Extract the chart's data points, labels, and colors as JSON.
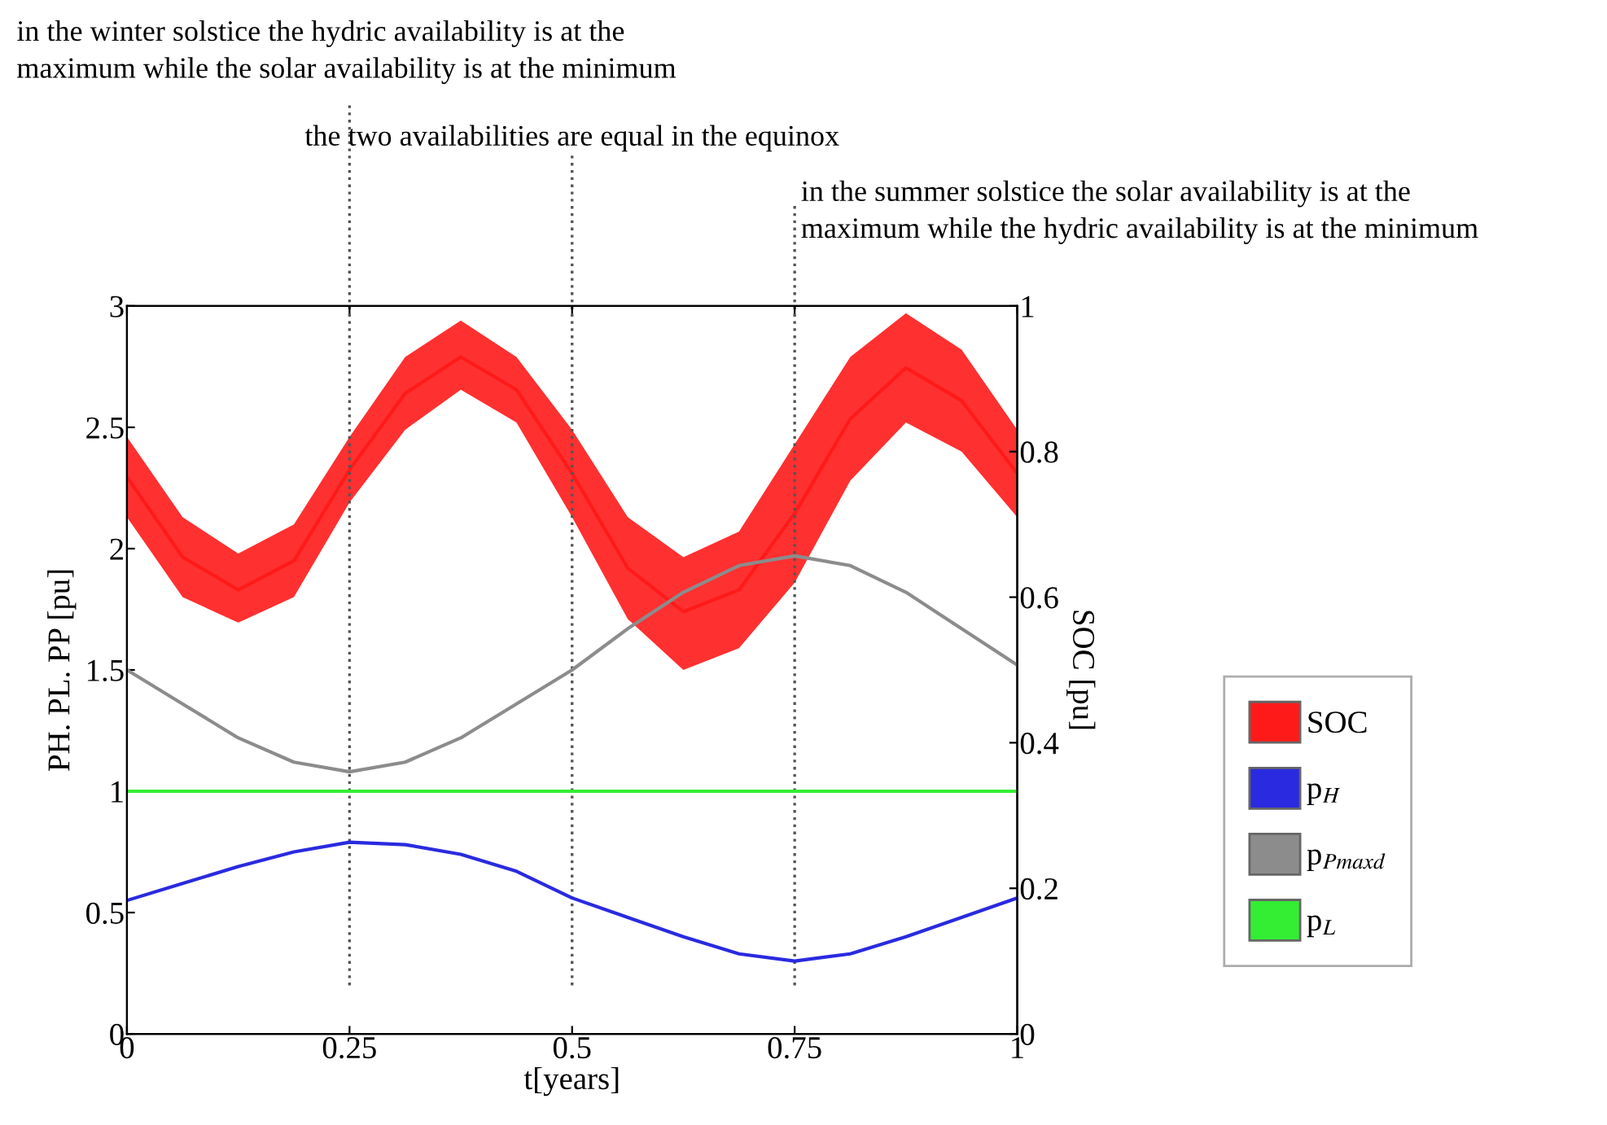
{
  "chart_data": {
    "type": "line",
    "xlabel": "t[years]",
    "ylabel": "PH. PL. PP [pu]",
    "y2label": "SOC [pu]",
    "xlim": [
      0,
      1
    ],
    "xticks": [
      0,
      0.25,
      0.5,
      0.75,
      1
    ],
    "ylim": [
      0,
      3
    ],
    "yticks": [
      0,
      0.5,
      1,
      1.5,
      2,
      2.5,
      3
    ],
    "y2lim": [
      0,
      1
    ],
    "y2ticks": [
      0,
      0.2,
      0.4,
      0.6,
      0.8,
      1
    ],
    "grid": false,
    "legend": "right",
    "marker": "none",
    "line_style": "solid",
    "x": [
      0,
      0.0625,
      0.125,
      0.1875,
      0.25,
      0.3125,
      0.375,
      0.4375,
      0.5,
      0.5625,
      0.625,
      0.6875,
      0.75,
      0.8125,
      0.875,
      0.9375,
      1
    ],
    "series": [
      {
        "name": "SOC",
        "color": "#ff1a1a",
        "axis": "y2",
        "values": [
          0.765,
          0.655,
          0.61,
          0.65,
          0.775,
          0.88,
          0.93,
          0.885,
          0.77,
          0.64,
          0.58,
          0.61,
          0.715,
          0.845,
          0.915,
          0.87,
          0.77
        ],
        "upper": [
          0.82,
          0.71,
          0.66,
          0.7,
          0.82,
          0.93,
          0.98,
          0.93,
          0.83,
          0.71,
          0.655,
          0.69,
          0.81,
          0.93,
          0.99,
          0.94,
          0.83
        ],
        "lower": [
          0.71,
          0.6,
          0.565,
          0.6,
          0.73,
          0.83,
          0.885,
          0.84,
          0.71,
          0.57,
          0.5,
          0.53,
          0.62,
          0.76,
          0.84,
          0.8,
          0.71
        ]
      },
      {
        "name": "p$_{H}$",
        "color": "#2a2ae0",
        "values": [
          0.55,
          0.62,
          0.69,
          0.75,
          0.79,
          0.78,
          0.74,
          0.67,
          0.56,
          0.48,
          0.4,
          0.33,
          0.3,
          0.33,
          0.4,
          0.48,
          0.56
        ]
      },
      {
        "name": "p$_{Pmaxd}$",
        "color": "#8c8c8c",
        "values": [
          1.5,
          1.36,
          1.22,
          1.12,
          1.08,
          1.12,
          1.22,
          1.36,
          1.5,
          1.67,
          1.82,
          1.93,
          1.97,
          1.93,
          1.82,
          1.67,
          1.52
        ]
      },
      {
        "name": "p$_{L}$",
        "color": "#33ee33",
        "x": [
          0,
          1
        ],
        "values": [
          1,
          1
        ]
      }
    ],
    "ref_lines": [
      {
        "axis": "x",
        "value": 0.25,
        "label": "in the winter solstice the hydric availability is at the\nmaximum while the solar availability is at the minimum",
        "line_style": "dotted",
        "color": "#555555"
      },
      {
        "axis": "x",
        "value": 0.5,
        "label": "the two availabilities are equal in the equinox",
        "line_style": "dotted",
        "color": "#555555"
      },
      {
        "axis": "x",
        "value": 0.75,
        "label": "in the summer solstice the solar availability is at the\nmaximum while the hydric availability is at the minimum",
        "line_style": "dotted",
        "color": "#555555"
      }
    ]
  }
}
